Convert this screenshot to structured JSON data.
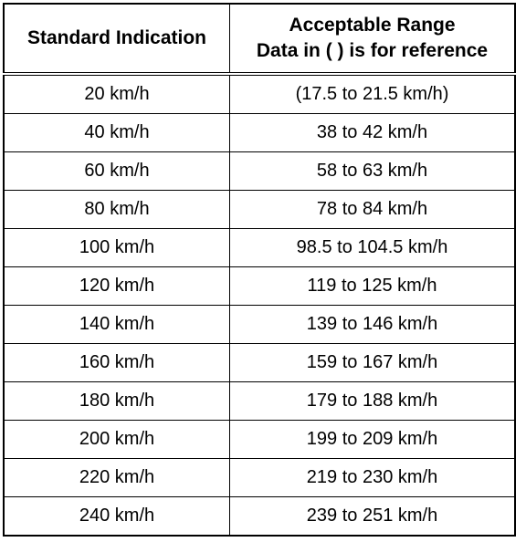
{
  "table": {
    "header": {
      "standard": "Standard Indication",
      "range": [
        "Acceptable Range",
        "Data in ( ) is for reference"
      ]
    },
    "rows": [
      [
        "20 km/h",
        "(17.5 to 21.5 km/h)"
      ],
      [
        "40 km/h",
        "38 to 42 km/h"
      ],
      [
        "60 km/h",
        "58 to 63 km/h"
      ],
      [
        "80 km/h",
        "78 to 84 km/h"
      ],
      [
        "100 km/h",
        "98.5 to 104.5 km/h"
      ],
      [
        "120 km/h",
        "119 to 125 km/h"
      ],
      [
        "140 km/h",
        "139 to 146 km/h"
      ],
      [
        "160 km/h",
        "159 to 167 km/h"
      ],
      [
        "180 km/h",
        "179 to 188 km/h"
      ],
      [
        "200 km/h",
        "199 to 209 km/h"
      ],
      [
        "220 km/h",
        "219 to 230 km/h"
      ],
      [
        "240 km/h",
        "239 to 251 km/h"
      ]
    ]
  }
}
